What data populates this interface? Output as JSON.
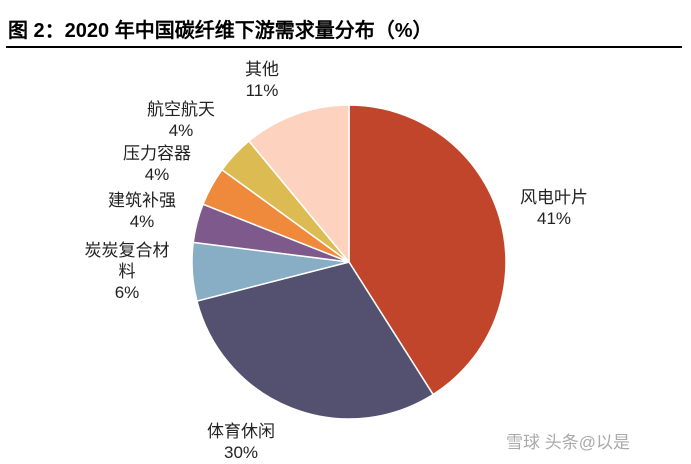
{
  "chart_data": {
    "type": "pie",
    "title": "图 2：2020 年中国碳纤维下游需求量分布（%）",
    "categories": [
      "风电叶片",
      "体育休闲",
      "炭炭复合材料",
      "建筑补强",
      "压力容器",
      "航空航天",
      "其他"
    ],
    "values": [
      41,
      30,
      6,
      4,
      4,
      4,
      11
    ],
    "value_labels": [
      "41%",
      "30%",
      "6%",
      "4%",
      "4%",
      "4%",
      "11%"
    ],
    "colors": [
      "#c0452a",
      "#545070",
      "#87aec4",
      "#7e5a8c",
      "#ef8a3c",
      "#dbbb52",
      "#fdd3c0"
    ],
    "watermark": "雪球 头条@以是"
  }
}
